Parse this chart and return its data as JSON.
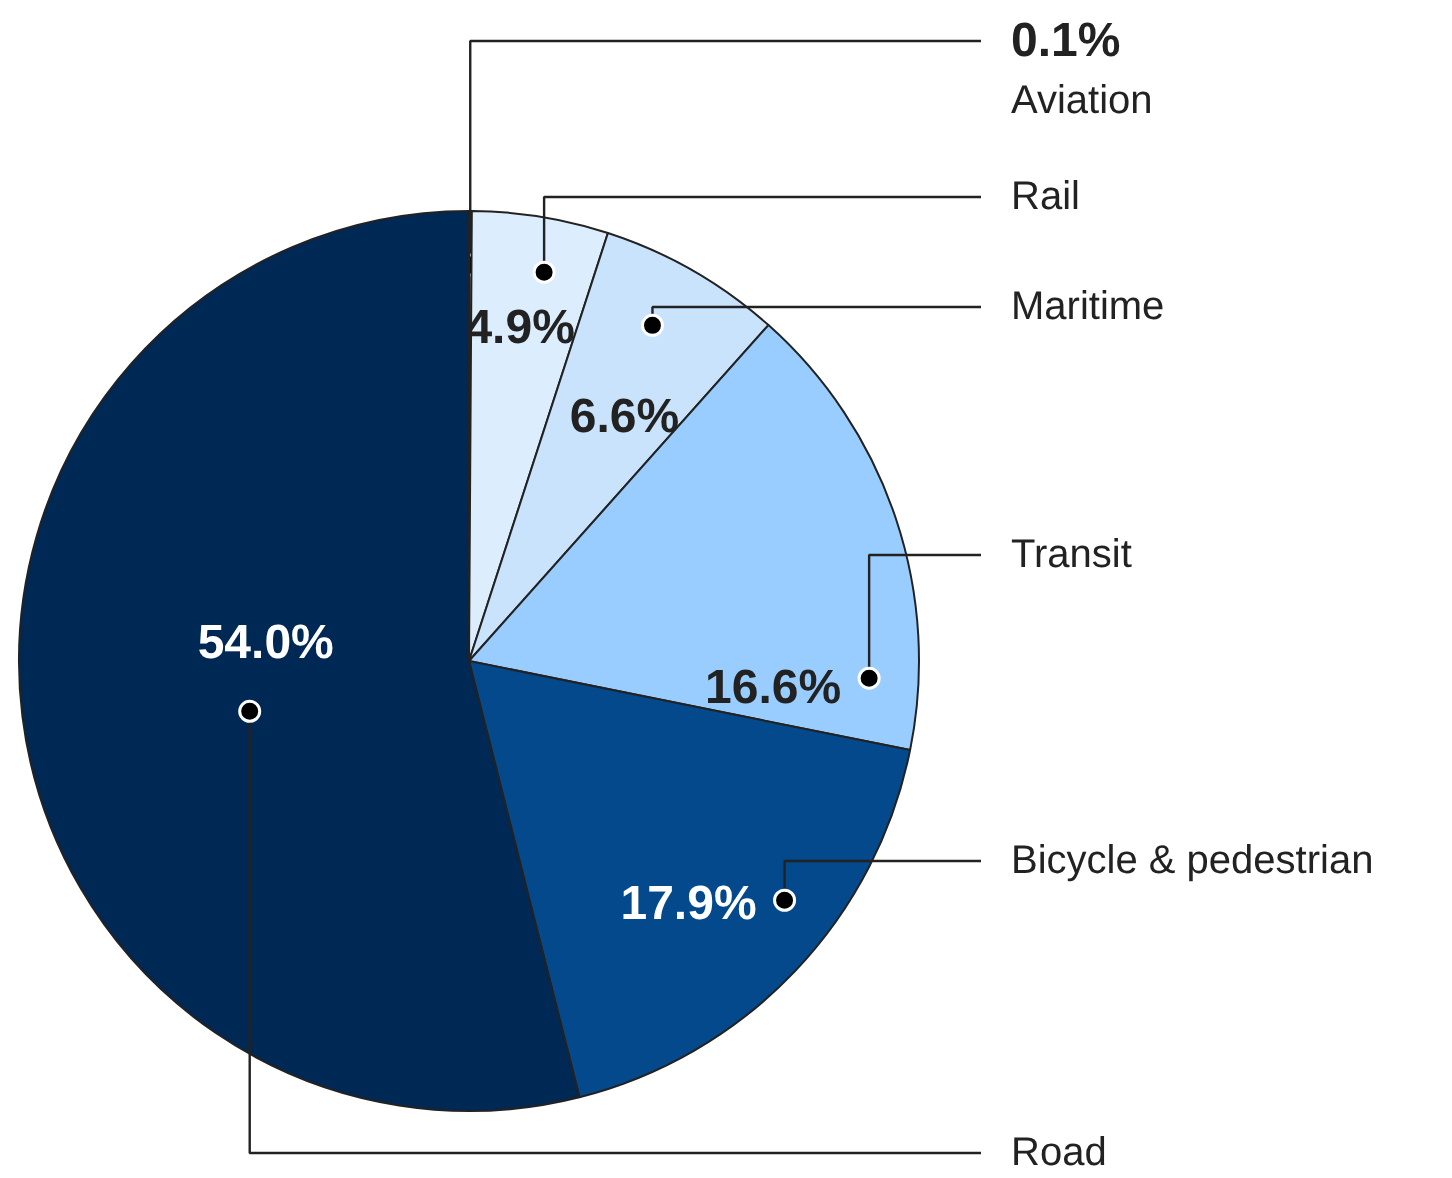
{
  "chart_data": {
    "type": "pie",
    "categories": [
      "Aviation",
      "Rail",
      "Maritime",
      "Transit",
      "Bicycle & pedestrian",
      "Road"
    ],
    "values": [
      0.1,
      4.9,
      6.6,
      16.6,
      17.9,
      54.0
    ],
    "value_labels": [
      "0.1%",
      "4.9%",
      "6.6%",
      "16.6%",
      "17.9%",
      "54.0%"
    ],
    "colors": [
      "#e8f2fd",
      "#dcedfd",
      "#c9e3fc",
      "#99ccff",
      "#03498c",
      "#002855"
    ]
  }
}
